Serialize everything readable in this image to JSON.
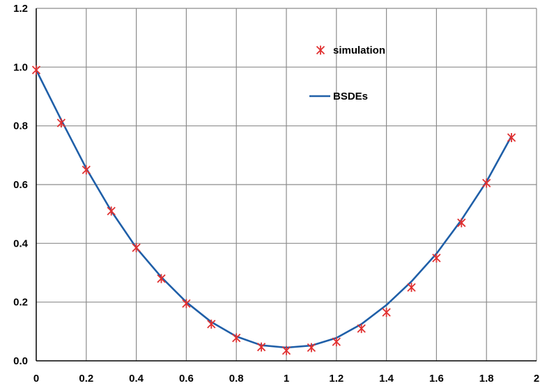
{
  "chart_data": {
    "type": "line",
    "title": "",
    "xlabel": "",
    "ylabel": "",
    "xlim": [
      0,
      2
    ],
    "ylim": [
      0,
      1.2
    ],
    "x_ticks": [
      "0",
      "0.2",
      "0.4",
      "0.6",
      "0.8",
      "1",
      "1.2",
      "1.4",
      "1.6",
      "1.8",
      "2"
    ],
    "y_ticks": [
      "0.0",
      "0.2",
      "0.4",
      "0.6",
      "0.8",
      "1.0",
      "1.2"
    ],
    "grid": true,
    "legend_position": "upper-middle-right",
    "series": [
      {
        "name": "simulation",
        "kind": "markers",
        "marker": "asterisk",
        "color": "#e03030",
        "x": [
          0,
          0.1,
          0.2,
          0.3,
          0.4,
          0.5,
          0.6,
          0.7,
          0.8,
          0.9,
          1.0,
          1.1,
          1.2,
          1.3,
          1.4,
          1.5,
          1.6,
          1.7,
          1.8,
          1.9
        ],
        "y": [
          0.99,
          0.81,
          0.65,
          0.51,
          0.385,
          0.28,
          0.195,
          0.125,
          0.078,
          0.047,
          0.035,
          0.045,
          0.065,
          0.11,
          0.165,
          0.25,
          0.35,
          0.47,
          0.605,
          0.76
        ]
      },
      {
        "name": "BSDEs",
        "kind": "line",
        "color": "#1f5fa8",
        "x": [
          0,
          0.1,
          0.2,
          0.3,
          0.4,
          0.5,
          0.6,
          0.7,
          0.8,
          0.9,
          1.0,
          1.1,
          1.2,
          1.3,
          1.4,
          1.5,
          1.6,
          1.7,
          1.8,
          1.9
        ],
        "y": [
          0.99,
          0.82,
          0.655,
          0.51,
          0.385,
          0.285,
          0.2,
          0.132,
          0.083,
          0.053,
          0.045,
          0.052,
          0.078,
          0.125,
          0.19,
          0.27,
          0.365,
          0.48,
          0.61,
          0.765
        ]
      }
    ]
  }
}
